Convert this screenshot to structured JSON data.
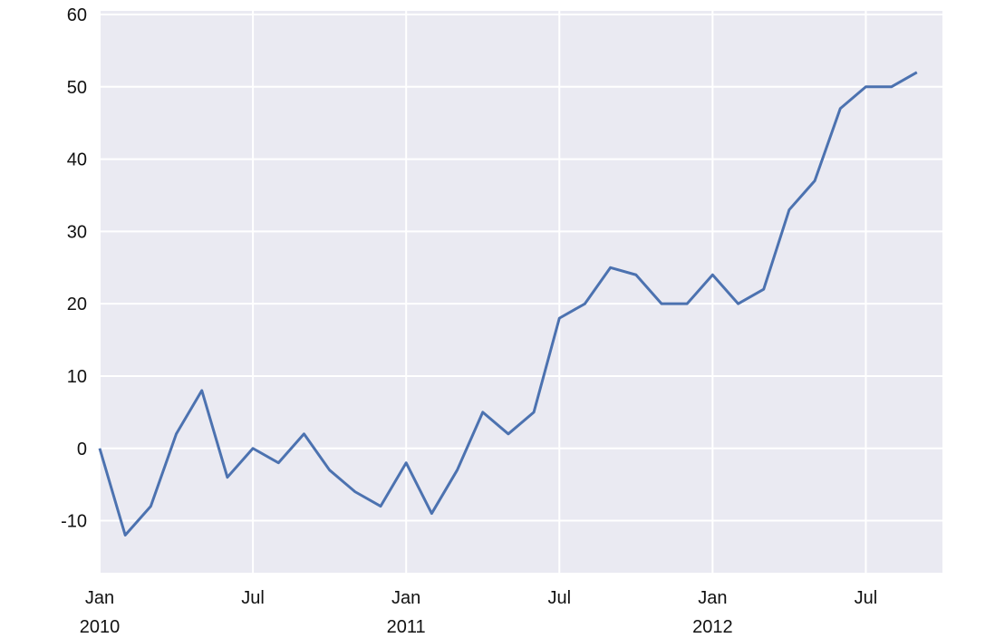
{
  "chart_data": {
    "type": "line",
    "x": [
      "2010-01",
      "2010-02",
      "2010-03",
      "2010-04",
      "2010-05",
      "2010-06",
      "2010-07",
      "2010-08",
      "2010-09",
      "2010-10",
      "2010-11",
      "2010-12",
      "2011-01",
      "2011-02",
      "2011-03",
      "2011-04",
      "2011-05",
      "2011-06",
      "2011-07",
      "2011-08",
      "2011-09",
      "2011-10",
      "2011-11",
      "2011-12",
      "2012-01",
      "2012-02",
      "2012-03",
      "2012-04",
      "2012-05",
      "2012-06",
      "2012-07",
      "2012-08",
      "2012-09"
    ],
    "series": [
      {
        "color": "#4c72b0",
        "values": [
          0,
          -12,
          -8,
          2,
          8,
          -4,
          0,
          -2,
          2,
          -3,
          -6,
          -8,
          -2,
          -9,
          -3,
          5,
          2,
          5,
          18,
          20,
          25,
          24,
          20,
          20,
          24,
          20,
          22,
          33,
          37,
          47,
          50,
          50,
          52
        ]
      }
    ],
    "xlim": [
      "2010-01",
      "2012-10"
    ],
    "xticks": [
      {
        "value": "2010-01",
        "label": "Jan 2010"
      },
      {
        "value": "2010-07",
        "label": "Jul"
      },
      {
        "value": "2011-01",
        "label": "Jan 2011"
      },
      {
        "value": "2011-07",
        "label": "Jul"
      },
      {
        "value": "2012-01",
        "label": "Jan 2012"
      },
      {
        "value": "2012-07",
        "label": "Jul"
      }
    ],
    "ylim": [
      -17.2,
      60.5
    ],
    "yticks": [
      -10,
      0,
      10,
      20,
      30,
      40,
      50,
      60
    ],
    "grid": true
  }
}
